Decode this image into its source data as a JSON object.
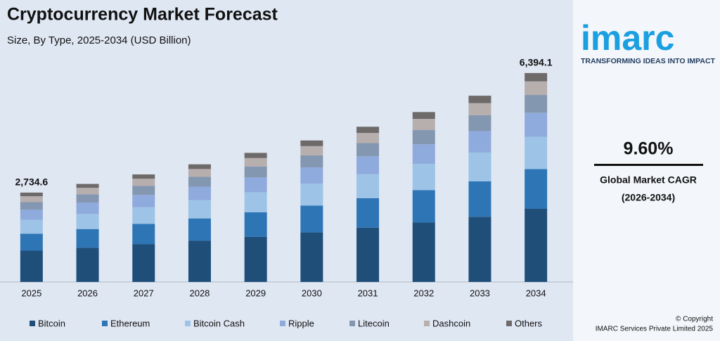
{
  "chart_data": {
    "type": "stacked_bar",
    "title": "Cryptocurrency Market Forecast",
    "subtitle": "Size, By Type, 2025-2034 (USD Billion)",
    "categories": [
      "2025",
      "2026",
      "2027",
      "2028",
      "2029",
      "2030",
      "2031",
      "2032",
      "2033",
      "2034"
    ],
    "series": [
      {
        "name": "Bitcoin",
        "color": "#1f4e79",
        "values": [
          957.1,
          1050,
          1151.5,
          1260,
          1382.5,
          1515.5,
          1662.5,
          1820,
          1995,
          2238
        ]
      },
      {
        "name": "Ethereum",
        "color": "#2e75b6",
        "values": [
          519.6,
          570,
          625.1,
          684,
          750.5,
          822.7,
          902.5,
          988,
          1083,
          1214.9
        ]
      },
      {
        "name": "Bitcoin Cash",
        "color": "#9dc3e6",
        "values": [
          423.9,
          465,
          510,
          558,
          612.3,
          671.2,
          736.3,
          806,
          883.5,
          991.1
        ]
      },
      {
        "name": "Ripple",
        "color": "#8faadc",
        "values": [
          314.5,
          345,
          378.4,
          414,
          454.3,
          498,
          546.3,
          598,
          655.5,
          735.3
        ]
      },
      {
        "name": "Litecoin",
        "color": "#8497b0",
        "values": [
          232.4,
          255,
          279.7,
          306,
          335.8,
          368,
          403.8,
          442,
          484.5,
          543.5
        ]
      },
      {
        "name": "Dashcoin",
        "color": "#b7aeae",
        "values": [
          177.7,
          195,
          213.9,
          234,
          256.8,
          281.5,
          308.8,
          338,
          370.5,
          415.6
        ]
      },
      {
        "name": "Others",
        "color": "#6e6a6a",
        "values": [
          109.4,
          120,
          131.6,
          144,
          158,
          173.2,
          190,
          208,
          228,
          255.7
        ]
      }
    ],
    "annotations": [
      {
        "category": "2025",
        "value": 2734.6,
        "label": "2,734.6"
      },
      {
        "category": "2034",
        "value": 6394.1,
        "label": "6,394.1"
      }
    ],
    "ylim": [
      0,
      6800
    ],
    "legend": "bottom"
  },
  "panel": {
    "logo": "imarc",
    "tagline": "TRANSFORMING IDEAS INTO IMPACT",
    "cagr": "9.60%",
    "cagr_label": "Global Market CAGR",
    "cagr_period": "(2026-2034)",
    "copyright": "© Copyright",
    "company": "IMARC Services Private Limited 2025"
  }
}
